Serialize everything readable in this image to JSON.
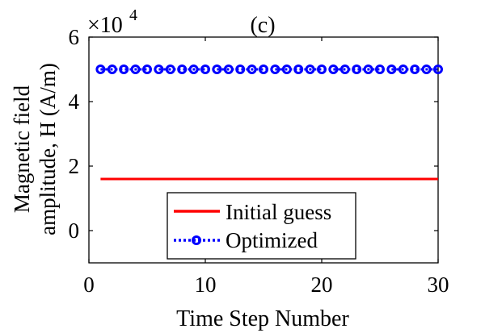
{
  "chart_data": {
    "type": "line",
    "panel_label": "(c)",
    "xlabel": "Time Step Number",
    "ylabel_line1": "Magnetic field",
    "ylabel_line2": "amplitude, H (A/m)",
    "exponent_base": "×10",
    "exponent_power": "4",
    "xlim": [
      0,
      30
    ],
    "ylim": [
      -1,
      6
    ],
    "y_scale_factor": 10000,
    "x_ticks": [
      0,
      10,
      20,
      30
    ],
    "x_tick_labels": [
      "0",
      "10",
      "20",
      "30"
    ],
    "y_ticks": [
      0,
      2,
      4,
      6
    ],
    "y_tick_labels": [
      "0",
      "2",
      "4",
      "6"
    ],
    "grid": false,
    "legend_position": "bottom-center",
    "x": [
      1,
      2,
      3,
      4,
      5,
      6,
      7,
      8,
      9,
      10,
      11,
      12,
      13,
      14,
      15,
      16,
      17,
      18,
      19,
      20,
      21,
      22,
      23,
      24,
      25,
      26,
      27,
      28,
      29,
      30
    ],
    "series": [
      {
        "name": "Initial guess",
        "color": "#ff0000",
        "style": "solid",
        "marker": "none",
        "values": [
          16000,
          16000,
          16000,
          16000,
          16000,
          16000,
          16000,
          16000,
          16000,
          16000,
          16000,
          16000,
          16000,
          16000,
          16000,
          16000,
          16000,
          16000,
          16000,
          16000,
          16000,
          16000,
          16000,
          16000,
          16000,
          16000,
          16000,
          16000,
          16000,
          16000
        ]
      },
      {
        "name": "Optimized",
        "color": "#0000ff",
        "style": "dotted",
        "marker": "circle",
        "values": [
          50000,
          50000,
          50000,
          50000,
          50000,
          50000,
          50000,
          50000,
          50000,
          50000,
          50000,
          50000,
          50000,
          50000,
          50000,
          50000,
          50000,
          50000,
          50000,
          50000,
          50000,
          50000,
          50000,
          50000,
          50000,
          50000,
          50000,
          50000,
          50000,
          50000
        ]
      }
    ]
  }
}
